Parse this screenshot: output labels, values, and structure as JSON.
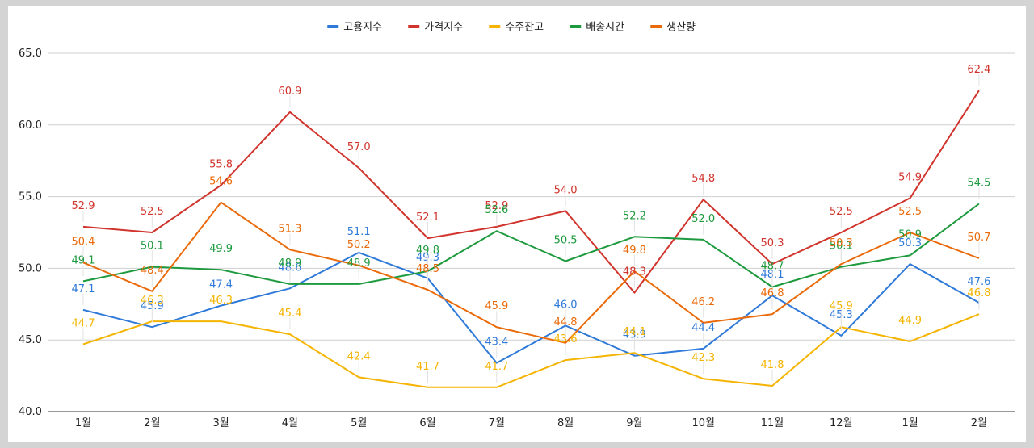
{
  "chart_data": {
    "type": "line",
    "categories": [
      "1월",
      "2월",
      "3월",
      "4월",
      "5월",
      "6월",
      "7월",
      "8월",
      "9월",
      "10월",
      "11월",
      "12월",
      "1월",
      "2월"
    ],
    "ylim": [
      40.0,
      65.0
    ],
    "yticks": [
      40.0,
      45.0,
      50.0,
      55.0,
      60.0,
      65.0
    ],
    "grid": true,
    "legend_position": "top-center",
    "series": [
      {
        "name": "고용지수",
        "color": "#2f7ad8",
        "values": [
          47.1,
          45.9,
          47.4,
          48.6,
          51.1,
          49.3,
          43.4,
          46.0,
          43.9,
          44.4,
          48.1,
          45.3,
          50.3,
          47.6
        ]
      },
      {
        "name": "가격지수",
        "color": "#d0342c",
        "values": [
          52.9,
          52.5,
          55.8,
          60.9,
          57.0,
          52.1,
          52.9,
          54.0,
          48.3,
          54.8,
          50.3,
          52.5,
          54.9,
          62.4
        ]
      },
      {
        "name": "수주잔고",
        "color": "#f4b400",
        "values": [
          44.7,
          46.3,
          46.3,
          45.4,
          42.4,
          41.7,
          41.7,
          43.6,
          44.1,
          42.3,
          41.8,
          45.9,
          44.9,
          46.8
        ]
      },
      {
        "name": "배송시간",
        "color": "#1e9a3e",
        "values": [
          49.1,
          50.1,
          49.9,
          48.9,
          48.9,
          49.8,
          52.6,
          50.5,
          52.2,
          52.0,
          48.7,
          50.1,
          50.9,
          54.5
        ]
      },
      {
        "name": "생산량",
        "color": "#ea6a0a",
        "values": [
          50.4,
          48.4,
          54.6,
          51.3,
          50.2,
          48.5,
          45.9,
          44.8,
          49.8,
          46.2,
          46.8,
          50.3,
          52.5,
          50.7
        ]
      }
    ]
  }
}
